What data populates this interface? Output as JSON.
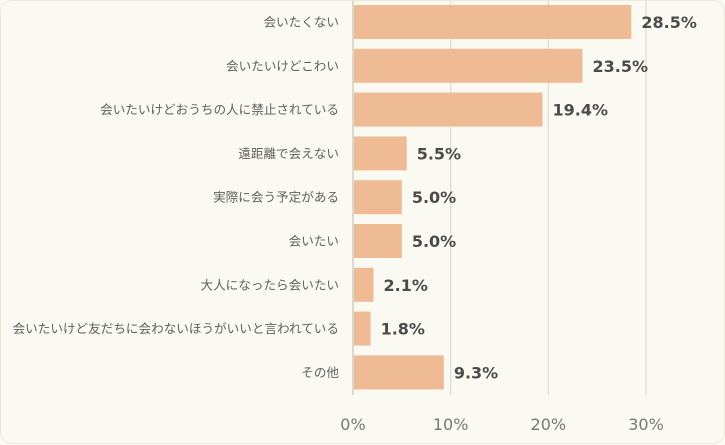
{
  "chart_data": {
    "type": "bar",
    "orientation": "horizontal",
    "categories": [
      "会いたくない",
      "会いたいけどこわい",
      "会いたいけどおうちの人に禁止されている",
      "遠距離で会えない",
      "実際に会う予定がある",
      "会いたい",
      "大人になったら会いたい",
      "会いたいけど友だちに会わないほうがいいと言われている",
      "その他"
    ],
    "values": [
      28.5,
      23.5,
      19.4,
      5.5,
      5.0,
      5.0,
      2.1,
      1.8,
      9.3
    ],
    "value_labels": [
      "28.5%",
      "23.5%",
      "19.4%",
      "5.5%",
      "5.0%",
      "5.0%",
      "2.1%",
      "1.8%",
      "9.3%"
    ],
    "xlim": [
      0,
      30
    ],
    "ticks": [
      0,
      10,
      20,
      30
    ],
    "tick_labels": [
      "0%",
      "10%",
      "20%",
      "30%"
    ],
    "grid": true,
    "legend": "none",
    "colors": {
      "bar": "#efbb95",
      "grid": "#dedad0",
      "axis": "#c9c2b3",
      "label_text": "#5f5f5f",
      "value_text": "#4b4b4b",
      "tick_text": "#777777"
    }
  }
}
